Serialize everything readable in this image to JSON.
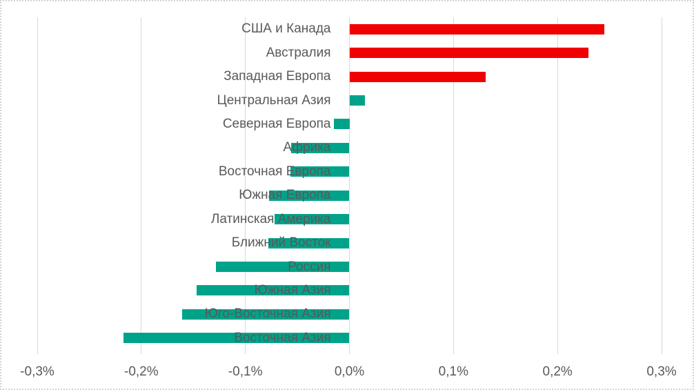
{
  "chart_data": {
    "type": "bar",
    "orientation": "horizontal",
    "title": "",
    "xlabel": "",
    "ylabel": "",
    "xlim": [
      -0.3,
      0.3
    ],
    "grid": true,
    "legend": "none",
    "unit": "%",
    "categories": [
      "США и Канада",
      "Австралия",
      "Западная Европа",
      "Центральная Азия",
      "Северная Европа",
      "Африка",
      "Восточная Европа",
      "Южная Европа",
      "Латинская Америка",
      "Ближний Восток",
      "Россия",
      "Южная Азия",
      "Юго-Восточная Азия",
      "Восточная Азия"
    ],
    "values": [
      0.245,
      0.23,
      0.131,
      0.015,
      -0.015,
      -0.056,
      -0.057,
      -0.077,
      -0.072,
      -0.078,
      -0.128,
      -0.147,
      -0.161,
      -0.217
    ],
    "bar_colors": [
      "#f00000",
      "#f00000",
      "#f00000",
      "#00a38a",
      "#00a38a",
      "#00a38a",
      "#00a38a",
      "#00a38a",
      "#00a38a",
      "#00a38a",
      "#00a38a",
      "#00a38a",
      "#00a38a",
      "#00a38a"
    ],
    "x_ticks": [
      -0.3,
      -0.2,
      -0.1,
      0,
      0.1,
      0.2,
      0.3
    ],
    "x_tick_labels": [
      "-0,3%",
      "-0,2%",
      "-0,1%",
      "0,0%",
      "0,1%",
      "0,2%",
      "0,3%"
    ]
  },
  "colors": {
    "positive_bar": "#f00000",
    "negative_bar": "#00a38a",
    "text": "#595959",
    "gridline": "#d9d9d9",
    "chart_border": "#d2d2d2",
    "background": "#ffffff"
  }
}
